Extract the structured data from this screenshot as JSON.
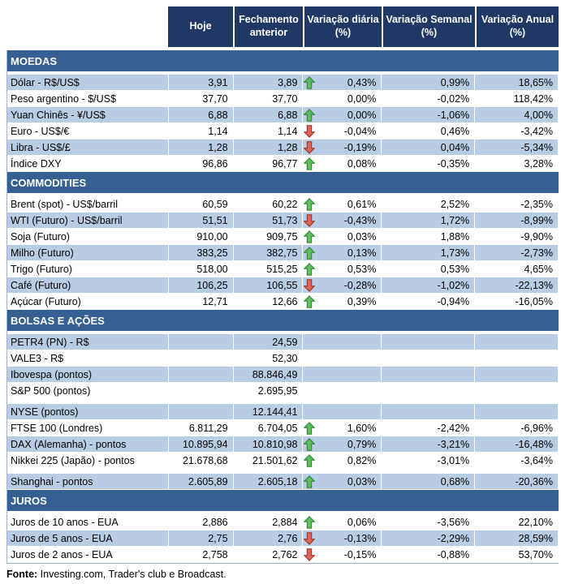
{
  "colors": {
    "header_bg": "#1F3864",
    "section_bg": "#366092",
    "row_shaded": "#B8CCE4",
    "arrow_up": "#5DBE5D",
    "arrow_up_border": "#2F7D32",
    "arrow_down": "#E2635B",
    "arrow_down_border": "#952E24"
  },
  "header": {
    "hoje": "Hoje",
    "fechamento": "Fechamento anterior",
    "diaria": "Variação diária (%)",
    "semanal": "Variação Semanal (%)",
    "anual": "Variação Anual (%)"
  },
  "sections": [
    {
      "id": "moedas",
      "title": "MOEDAS",
      "rows": [
        {
          "label": "Dólar - R$/US$",
          "hoje": "3,91",
          "fech": "3,89",
          "arrow": "up",
          "dia": "0,43%",
          "sem": "0,99%",
          "anu": "18,65%",
          "shaded": true
        },
        {
          "label": "Peso argentino - $/US$",
          "hoje": "37,70",
          "fech": "37,70",
          "arrow": "",
          "dia": "0,00%",
          "sem": "-0,02%",
          "anu": "118,42%",
          "shaded": false
        },
        {
          "label": "Yuan Chinês - ¥/US$",
          "hoje": "6,88",
          "fech": "6,88",
          "arrow": "up",
          "dia": "0,00%",
          "sem": "-1,06%",
          "anu": "4,00%",
          "shaded": true
        },
        {
          "label": "Euro - US$/€",
          "hoje": "1,14",
          "fech": "1,14",
          "arrow": "down",
          "dia": "-0,04%",
          "sem": "0,46%",
          "anu": "-3,42%",
          "shaded": false
        },
        {
          "label": "Libra - US$/£",
          "hoje": "1,28",
          "fech": "1,28",
          "arrow": "down",
          "dia": "-0,19%",
          "sem": "0,04%",
          "anu": "-5,34%",
          "shaded": true
        },
        {
          "label": "Índice DXY",
          "hoje": "96,86",
          "fech": "96,77",
          "arrow": "up",
          "dia": "0,08%",
          "sem": "-0,35%",
          "anu": "3,28%",
          "shaded": false
        }
      ]
    },
    {
      "id": "commodities",
      "title": "COMMODITIES",
      "rows": [
        {
          "label": "Brent (spot) - US$/barril",
          "hoje": "60,59",
          "fech": "60,22",
          "arrow": "up",
          "dia": "0,61%",
          "sem": "2,52%",
          "anu": "-2,35%",
          "shaded": false
        },
        {
          "label": "WTI (Futuro) - US$/barril",
          "hoje": "51,51",
          "fech": "51,73",
          "arrow": "down",
          "dia": "-0,43%",
          "sem": "1,72%",
          "anu": "-8,99%",
          "shaded": true
        },
        {
          "label": "Soja (Futuro)",
          "hoje": "910,00",
          "fech": "909,75",
          "arrow": "up",
          "dia": "0,03%",
          "sem": "1,88%",
          "anu": "-9,90%",
          "shaded": false
        },
        {
          "label": "Milho (Futuro)",
          "hoje": "383,25",
          "fech": "382,75",
          "arrow": "up",
          "dia": "0,13%",
          "sem": "1,73%",
          "anu": "-2,73%",
          "shaded": true
        },
        {
          "label": "Trigo (Futuro)",
          "hoje": "518,00",
          "fech": "515,25",
          "arrow": "up",
          "dia": "0,53%",
          "sem": "0,53%",
          "anu": "4,65%",
          "shaded": false
        },
        {
          "label": "Café (Futuro)",
          "hoje": "106,25",
          "fech": "106,55",
          "arrow": "down",
          "dia": "-0,28%",
          "sem": "-1,02%",
          "anu": "-22,13%",
          "shaded": true
        },
        {
          "label": "Açúcar (Futuro)",
          "hoje": "12,71",
          "fech": "12,66",
          "arrow": "up",
          "dia": "0,39%",
          "sem": "-0,94%",
          "anu": "-16,05%",
          "shaded": false
        }
      ]
    },
    {
      "id": "bolsas-e-acoes",
      "title": "BOLSAS E AÇÕES",
      "rows": [
        {
          "label": "PETR4 (PN) - R$",
          "hoje": "",
          "fech": "24,59",
          "arrow": "",
          "dia": "",
          "sem": "",
          "anu": "",
          "shaded": true
        },
        {
          "label": "VALE3 - R$",
          "hoje": "",
          "fech": "52,30",
          "arrow": "",
          "dia": "",
          "sem": "",
          "anu": "",
          "shaded": false
        },
        {
          "label": "Ibovespa (pontos)",
          "hoje": "",
          "fech": "88.846,49",
          "arrow": "",
          "dia": "",
          "sem": "",
          "anu": "",
          "shaded": true
        },
        {
          "label": "S&P 500 (pontos)",
          "hoje": "",
          "fech": "2.695,95",
          "arrow": "",
          "dia": "",
          "sem": "",
          "anu": "",
          "shaded": false
        },
        {
          "spacer": true
        },
        {
          "label": "NYSE (pontos)",
          "hoje": "",
          "fech": "12.144,41",
          "arrow": "",
          "dia": "",
          "sem": "",
          "anu": "",
          "shaded": true
        },
        {
          "label": "FTSE 100 (Londres)",
          "hoje": "6.811,29",
          "fech": "6.704,05",
          "arrow": "up",
          "dia": "1,60%",
          "sem": "-2,42%",
          "anu": "-6,96%",
          "shaded": false
        },
        {
          "label": "DAX (Alemanha) - pontos",
          "hoje": "10.895,94",
          "fech": "10.810,98",
          "arrow": "up",
          "dia": "0,79%",
          "sem": "-3,21%",
          "anu": "-16,48%",
          "shaded": true
        },
        {
          "label": "Nikkei 225 (Japão) - pontos",
          "hoje": "21.678,68",
          "fech": "21.501,62",
          "arrow": "up",
          "dia": "0,82%",
          "sem": "-3,01%",
          "anu": "-3,64%",
          "shaded": false
        },
        {
          "spacer": true
        },
        {
          "label": "Shanghai - pontos",
          "hoje": "2.605,89",
          "fech": "2.605,18",
          "arrow": "up",
          "dia": "0,03%",
          "sem": "0,68%",
          "anu": "-20,36%",
          "shaded": true
        }
      ]
    },
    {
      "id": "juros",
      "title": "JUROS",
      "rows": [
        {
          "label": "Juros de 10 anos - EUA",
          "hoje": "2,886",
          "fech": "2,884",
          "arrow": "up",
          "dia": "0,06%",
          "sem": "-3,56%",
          "anu": "22,10%",
          "shaded": false
        },
        {
          "label": "Juros de 5 anos - EUA",
          "hoje": "2,75",
          "fech": "2,76",
          "arrow": "down",
          "dia": "-0,13%",
          "sem": "-2,29%",
          "anu": "28,59%",
          "shaded": true
        },
        {
          "label": "Juros de 2 anos - EUA",
          "hoje": "2,758",
          "fech": "2,762",
          "arrow": "down",
          "dia": "-0,15%",
          "sem": "-0,88%",
          "anu": "53,70%",
          "shaded": false
        }
      ]
    }
  ],
  "footer": {
    "label": "Fonte:",
    "text": " Investing.com, Trader's club e Broadcast."
  }
}
